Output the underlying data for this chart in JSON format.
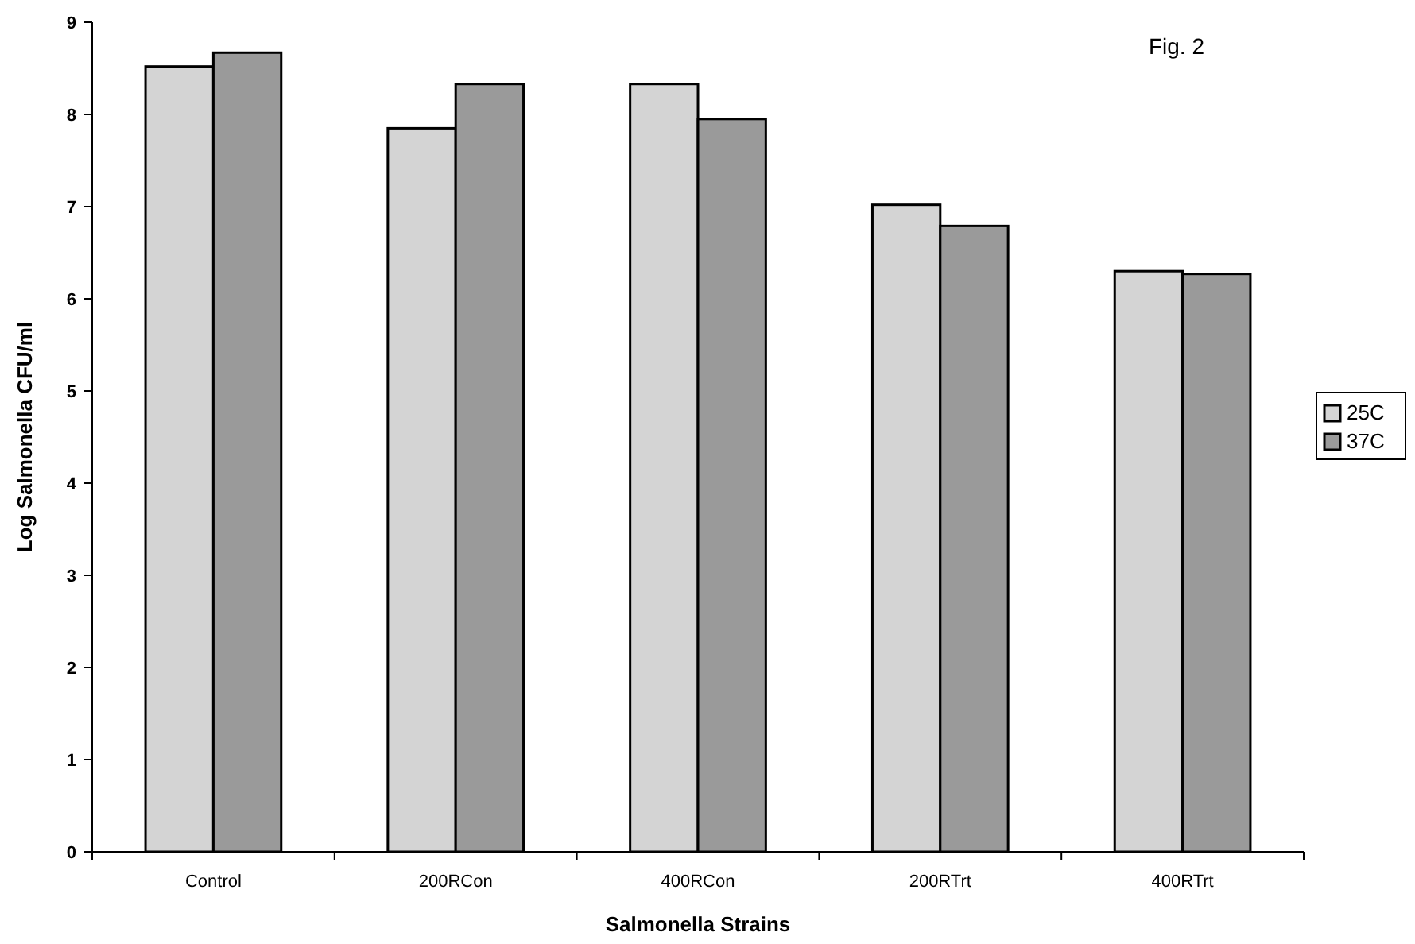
{
  "chart_data": {
    "type": "bar",
    "title": "Fig. 2",
    "xlabel": "Salmonella Strains",
    "ylabel": "Log Salmonella CFU/ml",
    "categories": [
      "Control",
      "200RCon",
      "400RCon",
      "200RTrt",
      "400RTrt"
    ],
    "series": [
      {
        "name": "25C",
        "color": "#d4d4d4",
        "values": [
          8.52,
          7.85,
          8.33,
          7.02,
          6.3
        ]
      },
      {
        "name": "37C",
        "color": "#9a9a9a",
        "values": [
          8.67,
          8.33,
          7.95,
          6.79,
          6.27
        ]
      }
    ],
    "ylim": [
      0,
      9
    ],
    "yticks": [
      0,
      1,
      2,
      3,
      4,
      5,
      6,
      7,
      8,
      9
    ],
    "grid": false,
    "legend": "right"
  }
}
